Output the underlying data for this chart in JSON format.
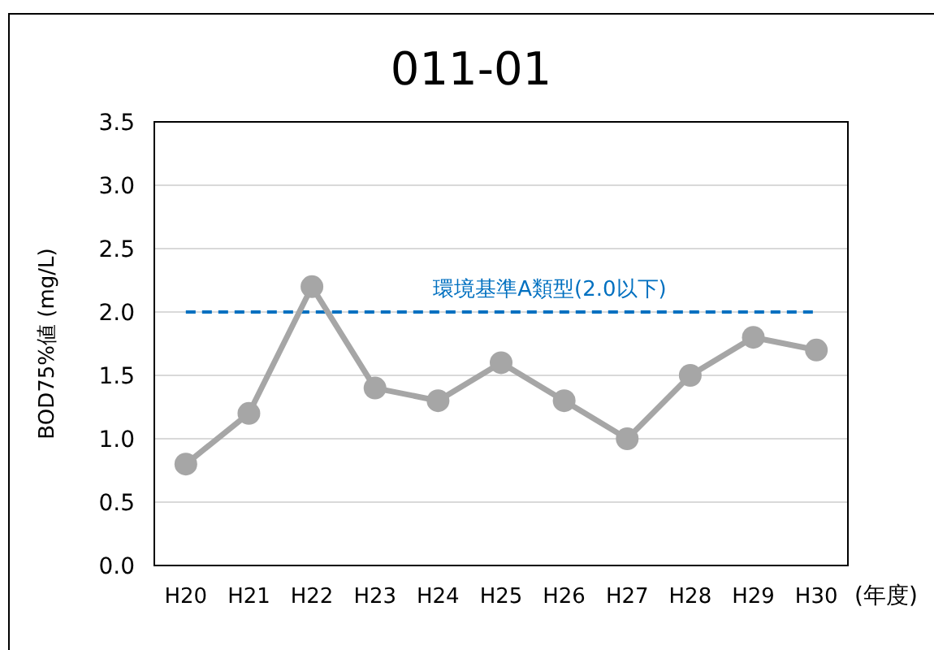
{
  "chart_data": {
    "type": "line",
    "title": "011-01",
    "xlabel": "(年度)",
    "ylabel": "BOD75%値 (mg/L)",
    "categories": [
      "H20",
      "H21",
      "H22",
      "H23",
      "H24",
      "H25",
      "H26",
      "H27",
      "H28",
      "H29",
      "H30"
    ],
    "series": [
      {
        "color": "#a6a6a6",
        "values": [
          0.8,
          1.2,
          2.2,
          1.4,
          1.3,
          1.6,
          1.3,
          1.0,
          1.5,
          1.8,
          1.7
        ]
      }
    ],
    "ylim": [
      0,
      3.5
    ],
    "yticks": [
      {
        "value": 0,
        "label": "0.0"
      },
      {
        "value": 0.5,
        "label": "0.5"
      },
      {
        "value": 1,
        "label": "1.0"
      },
      {
        "value": 1.5,
        "label": "1.5"
      },
      {
        "value": 2,
        "label": "2.0"
      },
      {
        "value": 2.5,
        "label": "2.5"
      },
      {
        "value": 3,
        "label": "3.0"
      },
      {
        "value": 3.5,
        "label": "3.5"
      }
    ],
    "grid": "y",
    "marker": "circle",
    "line_style": "solid",
    "ref_lines": [
      {
        "axis": "y",
        "value": 2.0,
        "label": "環境基準A類型(2.0以下)",
        "color": "#0070c0",
        "line_style": "dashed"
      }
    ]
  }
}
